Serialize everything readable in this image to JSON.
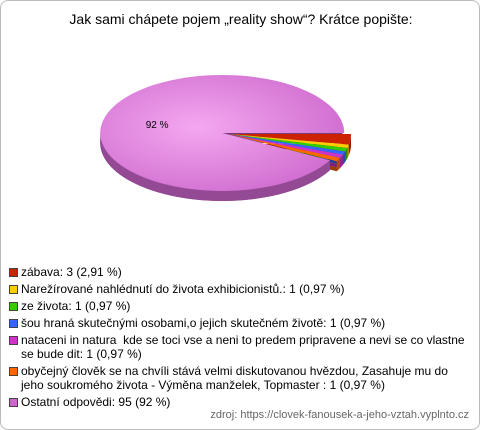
{
  "chart_data": {
    "type": "pie",
    "title": "Jak sami chápete pojem „reality show“? Krátce popište:",
    "categories": [
      "zábava: 3 (2,91 %)",
      "Narežírované nahlédnutí do života exhibicionistů.: 1 (0,97 %)",
      "ze života: 1 (0,97 %)",
      "šou hraná skutečnými osobami,o jejich skutečném životě: 1 (0,97 %)",
      "nataceni in natura  kde se toci vse a neni to predem pripravene a nevi se co vlastne se bude dit: 1 (0,97 %)",
      "obyčejný člověk se na chvíli stává velmi diskutovanou hvězdou, Zasahuje mu do jeho soukromého života - Výměna manželek, Topmaster : 1 (0,97 %)",
      "Ostatní odpovědi: 95 (92 %)"
    ],
    "values": [
      2.91,
      0.97,
      0.97,
      0.97,
      0.97,
      0.97,
      92
    ],
    "value_labels": [
      null,
      null,
      null,
      null,
      null,
      null,
      "92 %"
    ],
    "colors": [
      "#cc2200",
      "#ffcc00",
      "#33cc00",
      "#3366ff",
      "#cc33cc",
      "#ff6600",
      "#cc66cc"
    ],
    "source": "zdroj: https://clovek-fanousek-a-jeho-vztah.vyplnto.cz"
  }
}
